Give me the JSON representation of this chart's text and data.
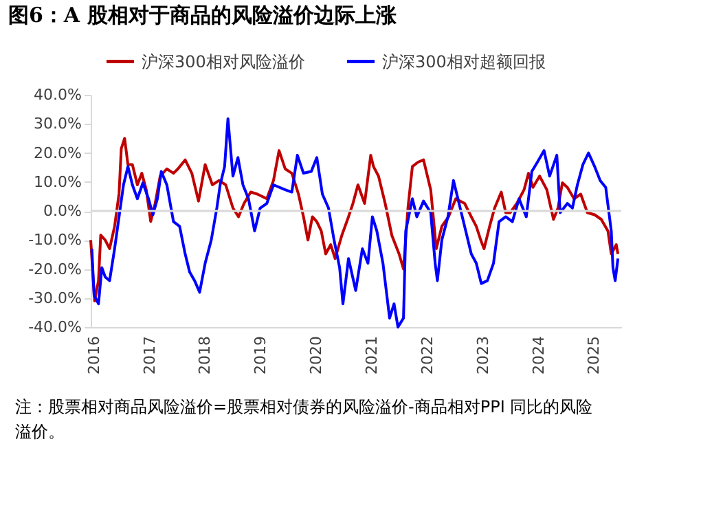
{
  "chart_data": {
    "type": "line",
    "title": "图6：A 股相对于商品的风险溢价边际上涨",
    "annotations": [
      "注：股票相对商品风险溢价=股票相对债券的风险溢价-商品相对PPI 同比的风险溢价。"
    ],
    "legend": "top",
    "grid": false,
    "line_style": "solid",
    "marker": "none",
    "xlim": [
      2016,
      2025.55
    ],
    "xticks": [
      2016,
      2017,
      2018,
      2019,
      2020,
      2021,
      2022,
      2023,
      2024,
      2025
    ],
    "ylim": [
      -40,
      40
    ],
    "yticks": [
      {
        "value": 40,
        "label": "40.0%"
      },
      {
        "value": 30,
        "label": "30.0%"
      },
      {
        "value": 20,
        "label": "20.0%"
      },
      {
        "value": 10,
        "label": "10.0%"
      },
      {
        "value": 0,
        "label": "0.0%"
      },
      {
        "value": -10,
        "label": "-10.0%"
      },
      {
        "value": -20,
        "label": "-20.0%"
      },
      {
        "value": -30,
        "label": "-30.0%"
      },
      {
        "value": -40,
        "label": "-40.0%"
      }
    ],
    "ref_lines": [
      {
        "axis": "y",
        "value": 0,
        "color": "#d9d9d9"
      }
    ],
    "series": [
      {
        "name": "沪深300相对风险溢价",
        "color": "#c00000",
        "x": [
          2016.0,
          2016.07,
          2016.14,
          2016.18,
          2016.26,
          2016.34,
          2016.43,
          2016.51,
          2016.55,
          2016.61,
          2016.67,
          2016.75,
          2016.84,
          2016.92,
          2017.0,
          2017.08,
          2017.16,
          2017.25,
          2017.37,
          2017.49,
          2017.57,
          2017.7,
          2017.82,
          2017.94,
          2018.06,
          2018.19,
          2018.31,
          2018.43,
          2018.56,
          2018.66,
          2018.76,
          2018.88,
          2019.0,
          2019.17,
          2019.29,
          2019.39,
          2019.5,
          2019.62,
          2019.74,
          2019.83,
          2019.91,
          2019.99,
          2020.07,
          2020.15,
          2020.23,
          2020.32,
          2020.4,
          2020.52,
          2020.64,
          2020.72,
          2020.81,
          2020.93,
          2021.04,
          2021.09,
          2021.18,
          2021.3,
          2021.42,
          2021.55,
          2021.63,
          2021.71,
          2021.79,
          2021.89,
          2021.99,
          2022.12,
          2022.22,
          2022.32,
          2022.44,
          2022.57,
          2022.73,
          2022.85,
          2022.94,
          2023.02,
          2023.08,
          2023.18,
          2023.27,
          2023.39,
          2023.47,
          2023.55,
          2023.67,
          2023.8,
          2023.88,
          2023.96,
          2024.08,
          2024.21,
          2024.33,
          2024.41,
          2024.49,
          2024.58,
          2024.7,
          2024.82,
          2024.94,
          2025.07,
          2025.19,
          2025.31,
          2025.37,
          2025.46,
          2025.49
        ],
        "values": [
          -10,
          -31,
          -24,
          -8.3,
          -10,
          -13,
          -5.3,
          6,
          21.5,
          25,
          16,
          16,
          9,
          13,
          7.3,
          -3.6,
          2.6,
          12,
          14.5,
          13,
          14.5,
          17.6,
          13,
          3.4,
          16,
          9,
          10.5,
          9,
          1,
          -2,
          2.6,
          6.5,
          5.8,
          4.2,
          10.5,
          20.8,
          14.5,
          13,
          5.8,
          -2,
          -10,
          -2,
          -3.7,
          -6.9,
          -14.8,
          -11.6,
          -16.4,
          -8.4,
          -2,
          2.6,
          9,
          2.6,
          19.2,
          15.3,
          12,
          2.6,
          -8.4,
          -14.8,
          -20,
          1,
          15.3,
          16.8,
          17.6,
          7.3,
          -13,
          -5.3,
          -2,
          4.2,
          2.6,
          -2,
          -5.3,
          -10,
          -13,
          -5.3,
          1,
          6.5,
          -0.6,
          -0.6,
          2.6,
          7.3,
          13,
          8.1,
          12,
          7.3,
          -2.9,
          1,
          9.7,
          8.1,
          4.2,
          5.8,
          -0.6,
          -1.3,
          -2.9,
          -6.9,
          -14.8,
          -11.6,
          -14.8
        ]
      },
      {
        "name": "沪深300相对超额回报",
        "color": "#0000ff",
        "x": [
          2016.02,
          2016.06,
          2016.14,
          2016.2,
          2016.26,
          2016.34,
          2016.43,
          2016.51,
          2016.59,
          2016.67,
          2016.75,
          2016.84,
          2016.94,
          2017.04,
          2017.12,
          2017.2,
          2017.27,
          2017.37,
          2017.49,
          2017.6,
          2017.7,
          2017.78,
          2017.87,
          2017.96,
          2018.06,
          2018.17,
          2018.27,
          2018.33,
          2018.41,
          2018.47,
          2018.56,
          2018.65,
          2018.74,
          2018.84,
          2018.95,
          2019.05,
          2019.17,
          2019.29,
          2019.5,
          2019.62,
          2019.72,
          2019.83,
          2019.97,
          2020.07,
          2020.17,
          2020.28,
          2020.38,
          2020.48,
          2020.54,
          2020.64,
          2020.77,
          2020.89,
          2020.99,
          2021.07,
          2021.15,
          2021.26,
          2021.38,
          2021.46,
          2021.53,
          2021.63,
          2021.67,
          2021.79,
          2021.87,
          2021.99,
          2022.12,
          2022.2,
          2022.24,
          2022.32,
          2022.43,
          2022.53,
          2022.65,
          2022.73,
          2022.85,
          2022.94,
          2023.03,
          2023.14,
          2023.25,
          2023.35,
          2023.47,
          2023.59,
          2023.71,
          2023.84,
          2023.94,
          2024.04,
          2024.16,
          2024.26,
          2024.39,
          2024.45,
          2024.58,
          2024.67,
          2024.76,
          2024.86,
          2024.96,
          2025.07,
          2025.17,
          2025.27,
          2025.37,
          2025.4,
          2025.44,
          2025.49
        ],
        "values": [
          -13,
          -29,
          -32,
          -19.5,
          -22.7,
          -24,
          -13,
          -2,
          9,
          15.3,
          9,
          4.2,
          9.7,
          4.2,
          -1.3,
          4.2,
          13.6,
          9,
          -3.7,
          -5.3,
          -14.8,
          -21,
          -24,
          -28,
          -18,
          -10,
          1,
          9,
          15.3,
          31.8,
          12,
          18.4,
          9,
          4.2,
          -6.9,
          1,
          2.6,
          9,
          7.3,
          6.5,
          19.2,
          13,
          13.6,
          18.4,
          5.8,
          1,
          -10,
          -19.5,
          -32,
          -16.4,
          -27.4,
          -13,
          -18,
          -2,
          -6.9,
          -18,
          -36.9,
          -32,
          -40,
          -36.9,
          -6.9,
          4.2,
          -2,
          3.4,
          -0.6,
          -18,
          -24,
          -10,
          -2,
          10.5,
          1,
          -5.3,
          -14.8,
          -18,
          -25,
          -24,
          -18,
          -3.7,
          -2,
          -3.7,
          4.2,
          -2,
          13.6,
          16.8,
          20.8,
          12,
          19.2,
          -0.6,
          2.6,
          1,
          9,
          16,
          20,
          15.3,
          10.5,
          8.1,
          -6.9,
          -19.5,
          -24,
          -16.4
        ]
      }
    ]
  }
}
